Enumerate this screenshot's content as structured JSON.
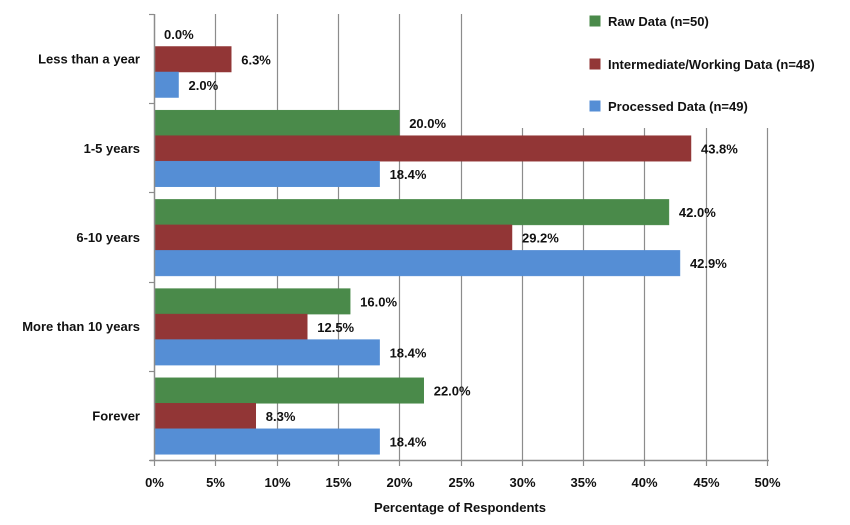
{
  "chart_data": {
    "type": "bar",
    "orientation": "horizontal",
    "title": "",
    "xlabel": "Percentage of Respondents",
    "ylabel": "",
    "xlim": [
      0,
      50
    ],
    "x_ticks": [
      "0%",
      "5%",
      "10%",
      "15%",
      "20%",
      "25%",
      "30%",
      "35%",
      "40%",
      "45%",
      "50%"
    ],
    "grid": "vertical",
    "legend_position": "top-right",
    "categories": [
      "Less than a year",
      "1-5 years",
      "6-10 years",
      "More than 10 years",
      "Forever"
    ],
    "series": [
      {
        "name": "Raw Data (n=50)",
        "color": "#4a8a4a",
        "values": [
          0.0,
          20.0,
          42.0,
          16.0,
          22.0
        ],
        "labels": [
          "0.0%",
          "20.0%",
          "42.0%",
          "16.0%",
          "22.0%"
        ]
      },
      {
        "name": "Intermediate/Working Data (n=48)",
        "color": "#923636",
        "values": [
          6.3,
          43.8,
          29.2,
          12.5,
          8.3
        ],
        "labels": [
          "6.3%",
          "43.8%",
          "29.2%",
          "12.5%",
          "8.3%"
        ]
      },
      {
        "name": "Processed Data (n=49)",
        "color": "#558ed5",
        "values": [
          2.0,
          18.4,
          42.9,
          18.4,
          18.4
        ],
        "labels": [
          "2.0%",
          "18.4%",
          "42.9%",
          "18.4%",
          "18.4%"
        ]
      }
    ]
  }
}
